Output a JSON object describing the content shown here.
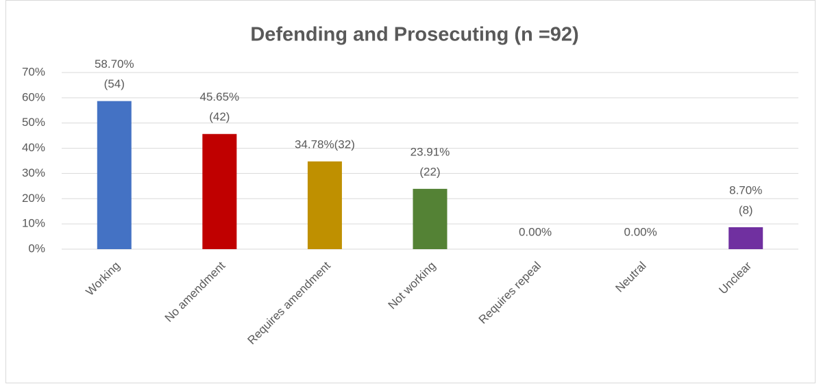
{
  "chart_data": {
    "type": "bar",
    "title": "Defending and Prosecuting (n =92)",
    "categories": [
      "Working",
      "No amendment",
      "Requires amendment",
      "Not working",
      "Requires repeal",
      "Neutral",
      "Unclear"
    ],
    "values": [
      58.7,
      45.65,
      34.78,
      23.91,
      0.0,
      0.0,
      8.7
    ],
    "value_labels": [
      [
        "58.70%",
        "(54)"
      ],
      [
        "45.65%",
        "(42)"
      ],
      [
        "34.78%(32)"
      ],
      [
        "23.91%",
        "(22)"
      ],
      [
        "0.00%"
      ],
      [
        "0.00%"
      ],
      [
        "8.70%",
        "(8)"
      ]
    ],
    "colors": [
      "#4472c4",
      "#c00000",
      "#bf9000",
      "#548235",
      "#a5a5a5",
      "#a5a5a5",
      "#7030a0"
    ],
    "ylim": [
      0,
      70
    ],
    "yticks": [
      {
        "value": 0,
        "label": "0%"
      },
      {
        "value": 10,
        "label": "10%"
      },
      {
        "value": 20,
        "label": "20%"
      },
      {
        "value": 30,
        "label": "30%"
      },
      {
        "value": 40,
        "label": "40%"
      },
      {
        "value": 50,
        "label": "50%"
      },
      {
        "value": 60,
        "label": "60%"
      },
      {
        "value": 70,
        "label": "70%"
      }
    ],
    "grid": true
  }
}
